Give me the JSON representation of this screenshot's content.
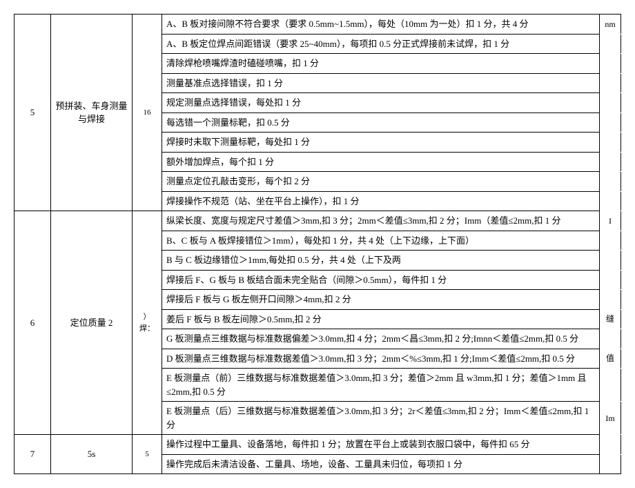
{
  "table": {
    "row5": {
      "num": "5",
      "name": "预拼装、车身测量与焊接",
      "pts": "16",
      "details": [
        "A、B 板对接间隙不符合要求（要求 0.5mm~1.5mm），每处（10mm 为一处）扣 1 分，共 4 分",
        "A、B 板定位焊点间距错误（要求 25~40mm），每项扣 0.5 分正式焊接前未试焊，扣 1 分",
        "清除焊枪喷嘴焊渣时磕碰喷嘴，扣 1 分",
        "测量基准点选择错误，扣 1 分",
        "规定测量点选择错误，每处扣 1 分",
        "每选错一个测量标靶，扣 0.5 分",
        "焊接时未取下测量标靶，每处扣 1 分",
        "额外增加焊点，每个扣 1 分",
        "测量点定位孔敲击变形，每个扣 2 分",
        "焊接操作不规范（站、坐在平台上操作），扣 1 分"
      ],
      "extras": [
        "nm",
        "",
        "",
        "",
        "",
        "",
        "",
        "",
        "",
        ""
      ]
    },
    "row6": {
      "num": "6",
      "name": "定位质量 2",
      "pts": "）焊：",
      "details": [
        "纵梁长度、宽度与规定尺寸差值＞3mm,扣 3 分；2mm＜差值≤3mm,扣 2 分；Imm（差值≤2mm,扣 1 分",
        "B、C 板与 A 板焊接错位＞1mm），每处扣 1 分，共 4 处（上下边缘，上下面）",
        "B 与 C 板边缘错位＞1mm,每处扣 0.5 分，共 4 处（上下及两",
        "焊接后 F、G 板与 B 板结合面未完全贴合（间隙＞0.5mm），每件扣 1 分",
        "焊接后 F 板与 G 板左侧开口间隙＞4mm,扣 2 分",
        "姜后 F 板与 B 板左间隙＞0.5mm,扣 2 分",
        "G 板测量点三维数据与标准数据偏差＞3.0mm,扣 4 分；2mm＜昌≤3mm,扣 2 分;Imnn＜差值≤2mm,扣 0.5 分",
        "D 板测量点三维数据与标准数据差值＞3.0mm,扣 3 分；2mm＜%≤3mm,扣 1 分;Imm＜差值≤2mm,扣 0.5 分",
        "E 板测量点（前）三维数据与标准数据差值＞3.0mm,扣 3 分；差值＞2mm 且 w3mm,扣 1 分；差值＞1mm 且≤2mm,扣 0.5 分",
        "E 板测量点（后）三维数据与标准数据差值＞3.0mm,扣 3 分；2r＜差值≤3mm,扣 2 分；Imm＜差值≤2mm,扣 1 分"
      ],
      "extras": [
        "I",
        "",
        "",
        "",
        "",
        "缝",
        "",
        "值",
        "",
        "Im"
      ]
    },
    "row7": {
      "num": "7",
      "name": "5s",
      "pts": "5",
      "details": [
        "操作过程中工量具、设备落地，每件扣 1 分；放置在平台上或装到衣服口袋中，每件扣 65 分",
        "操作完成后未清洁设备、工量具、场地，设备、工量具未归位，每项扣 1 分"
      ],
      "extras": [
        "",
        ""
      ]
    }
  }
}
